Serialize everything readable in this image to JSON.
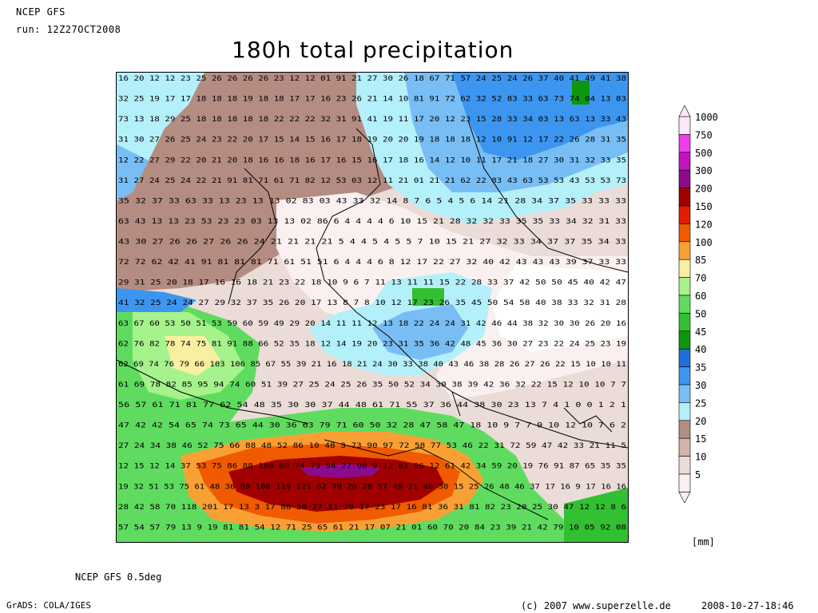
{
  "header": {
    "model": "NCEP GFS",
    "run": "run: 12Z27OCT2008",
    "title": "180h total precipitation"
  },
  "footer": {
    "resolution": "NCEP GFS 0.5deg",
    "software": "GrADS: COLA/IGES",
    "copyright": "(c) 2007 www.superzelle.de",
    "timestamp": "2008-10-27-18:46"
  },
  "legend": {
    "unit": "[mm]",
    "levels": [
      {
        "label": "1000",
        "color": "#fbe6fb"
      },
      {
        "label": "750",
        "color": "#ee3cee"
      },
      {
        "label": "500",
        "color": "#c014c0"
      },
      {
        "label": "300",
        "color": "#8c0a8c"
      },
      {
        "label": "200",
        "color": "#a00000"
      },
      {
        "label": "150",
        "color": "#e01e00"
      },
      {
        "label": "120",
        "color": "#f05a00"
      },
      {
        "label": "100",
        "color": "#f9a035"
      },
      {
        "label": "85",
        "color": "#f8f0a0"
      },
      {
        "label": "70",
        "color": "#a6f28c"
      },
      {
        "label": "60",
        "color": "#5fdc5f"
      },
      {
        "label": "50",
        "color": "#32c032"
      },
      {
        "label": "45",
        "color": "#0e960e"
      },
      {
        "label": "40",
        "color": "#1e6edc"
      },
      {
        "label": "35",
        "color": "#3c96f0"
      },
      {
        "label": "30",
        "color": "#78bef5"
      },
      {
        "label": "25",
        "color": "#b4f0fa"
      },
      {
        "label": "20",
        "color": "#b48c82"
      },
      {
        "label": "15",
        "color": "#d2b4aa"
      },
      {
        "label": "10",
        "color": "#ebdcd7"
      },
      {
        "label": "5",
        "color": "#faf0f0"
      }
    ]
  },
  "map": {
    "field": "180h total precipitation",
    "grid_rows": [
      "16 20 12 12 23 25 26 26 26 26 23 12 12 01 91 21 27 30 26 18 67 71 57 24 25 24 26 37 40 41 49 41 38",
      "32 25 19 17 17 18 18 18 19 18 18 17 17 16 23 26 21 14 10 81 91 72 62 32 52 83 33 63 73 74 04 13 83",
      "73 13 18 29 25 18 18 18 18 18 22 22 22 32 31 91 41 19 11 17 20 12 23 15 28 33 34 03 13 63 13 33 43",
      "31 30 27 26 25 24 23 22 20 17 15 14 15 16 17 18 19 20 20 19 18 18 18 12 10 91 12 17 22 26 28 31 35",
      "12 22 27 29 22 20 21 20 18 16 16 18 16 17 16 15 16 17 18 16 14 12 10 11 17 21 18 27 30 31 32 33 35",
      "31 27 24 25 24 22 21 91 81 71 61 71 82 12 53 03 12 11 21 01 21 21 62 22 83 43 63 53 53 43 53 53 73",
      "35 32 37 33 63 33 13 23 13 13 02 83 03 43 33 32 14 8 7 6 5 4 5 6 14 21 28 34 37 35 33 33 33",
      "63 43 13 13 23 53 23 23 03 13 13 02 86 6 4 4 4 4 6 10 15 21 28 32 32 33 35 35 33 34 32 31 33",
      "43 30 27 26 26 27 26 26 24 21 21 21 21 5 4 4 5 4 5 5 7 10 15 21 27 32 33 34 37 37 35 34 33",
      "72 72 62 42 41 91 81 81 81 71 61 51 51 6 4 4 4 6 8 12 17 22 27 32 40 42 43 43 43 39 37 33 33",
      "29 31 25 20 18 17 16 16 18 21 23 22 18 10 9 6 7 11 13 11 11 15 22 28 33 37 42 50 50 45 40 42 47",
      "41 32 25 24 24 27 29 32 37 35 26 20 17 13 8 7 8 10 12 17 23 26 35 45 50 54 58 40 38 33 32 31 28",
      "63 67 60 53 50 51 53 59 60 59 49 29 20 14 11 11 12 13 18 22 24 24 31 42 46 44 38 32 30 30 26 20 16",
      "62 76 82 78 74 75 81 91 88 66 52 35 18 12 14 19 20 23 31 35 36 42 48 45 36 30 27 23 22 24 25 23 19",
      "62 69 74 76 79 66 103 106 85 67 55 39 21 16 18 21 24 30 33 38 40 43 46 38 28 26 27 26 22 15 10 10 11",
      "61 69 78 82 85 95 94 74 60 51 39 27 25 24 25 26 35 50 52 34 30 38 39 42 36 32 22 15 12 10 10 7 7",
      "56 57 61 71 81 77 62 54 48 35 30 30 37 44 48 61 71 55 37 36 44 38 30 23 13 7 4 1 0 0 1 2 1",
      "47 42 42 54 65 74 73 65 44 30 36 63 79 71 60 50 32 28 47 58 47 18 10 9 7 7 9 10 12 10 7 6 2",
      "27 24 34 38 46 52 75 66 88 48 52 86 10 48 3 73 90 97 72 58 77 53 46 22 31 72 59 47 42 33 21 11 5",
      "12 15 12 14 37 53 75 86 88 108 69 74 73 54 27 98 9 12 61 96 12 61 42 34 59 20 19 76 91 87 65 35 35",
      "19 32 51 53 75 61 48 36 80 108 119 121 62 79 20 28 57 49 21 46 30 15 25 26 48 46 37 17 16 9 17 16 16",
      "28 42 58 70 118 201 17 13 3 17 88 59 27 11 79 17 23 17 16 81 36 31 81 82 23 20 25 30 47 12 12 8 6",
      "57 54 57 79 13 9 19 81 81 54 12 71 25 65 61 21 17 07 21 01 60 70 20 84 23 39 21 42 79 10 05 92 08"
    ]
  }
}
